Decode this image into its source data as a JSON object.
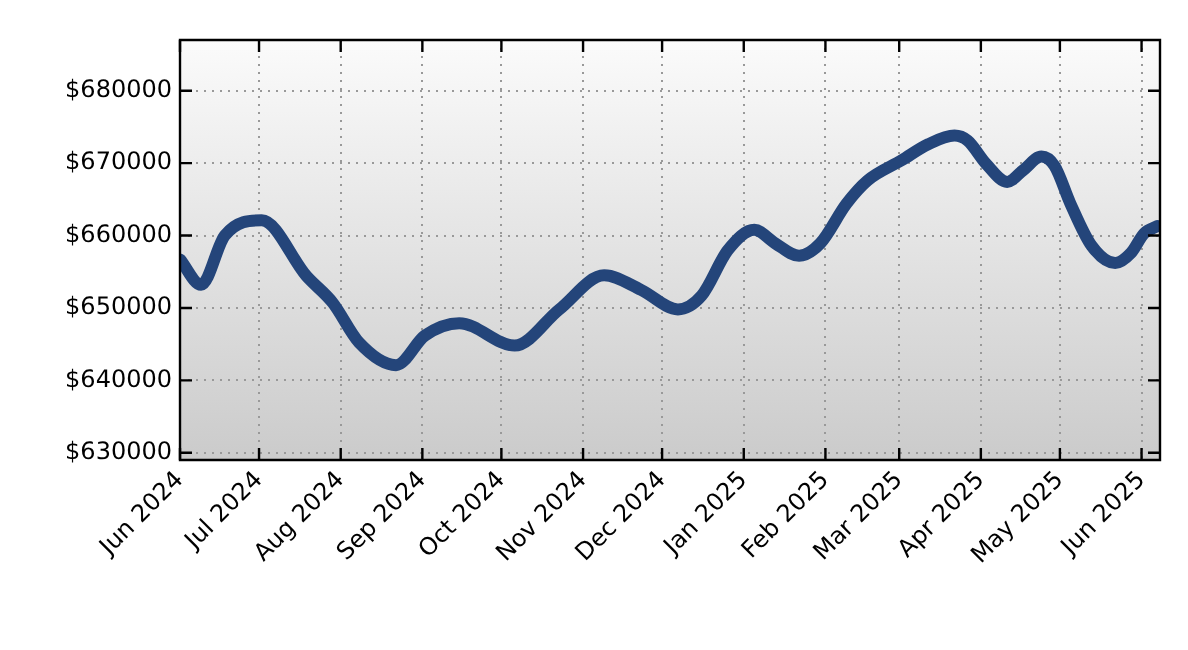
{
  "chart_data": {
    "type": "line",
    "x": [
      "2024-06-01",
      "2024-06-09",
      "2024-06-18",
      "2024-07-02",
      "2024-07-19",
      "2024-07-29",
      "2024-08-08",
      "2024-08-22",
      "2024-09-02",
      "2024-09-15",
      "2024-10-06",
      "2024-10-23",
      "2024-11-09",
      "2024-11-23",
      "2024-12-07",
      "2024-12-16",
      "2024-12-26",
      "2025-01-05",
      "2025-01-13",
      "2025-01-22",
      "2025-01-30",
      "2025-02-09",
      "2025-02-17",
      "2025-03-02",
      "2025-03-12",
      "2025-03-22",
      "2025-03-27",
      "2025-04-03",
      "2025-04-11",
      "2025-04-17",
      "2025-04-24",
      "2025-04-29",
      "2025-05-05",
      "2025-05-13",
      "2025-05-22",
      "2025-05-28",
      "2025-06-02",
      "2025-06-07"
    ],
    "series": [
      {
        "color": "#24457a",
        "values": [
          656700,
          653200,
          660000,
          662100,
          654400,
          650700,
          645200,
          642100,
          646200,
          647900,
          644800,
          649800,
          654500,
          652500,
          649800,
          651700,
          658000,
          660800,
          658900,
          657200,
          658900,
          664400,
          667600,
          670400,
          672600,
          673800,
          673100,
          669900,
          667400,
          669000,
          670900,
          669600,
          664400,
          658600,
          656200,
          657600,
          660300,
          661300
        ]
      }
    ],
    "xlim": [
      "2024-06-01",
      "2025-06-08"
    ],
    "xticks": [
      {
        "value": "2024-06-01",
        "label": "Jun 2024"
      },
      {
        "value": "2024-07-01",
        "label": "Jul 2024"
      },
      {
        "value": "2024-08-01",
        "label": "Aug 2024"
      },
      {
        "value": "2024-09-01",
        "label": "Sep 2024"
      },
      {
        "value": "2024-10-01",
        "label": "Oct 2024"
      },
      {
        "value": "2024-11-01",
        "label": "Nov 2024"
      },
      {
        "value": "2024-12-01",
        "label": "Dec 2024"
      },
      {
        "value": "2025-01-01",
        "label": "Jan 2025"
      },
      {
        "value": "2025-02-01",
        "label": "Feb 2025"
      },
      {
        "value": "2025-03-01",
        "label": "Mar 2025"
      },
      {
        "value": "2025-04-01",
        "label": "Apr 2025"
      },
      {
        "value": "2025-05-01",
        "label": "May 2025"
      },
      {
        "value": "2025-06-01",
        "label": "Jun 2025"
      }
    ],
    "ylim": [
      629000,
      687000
    ],
    "yticks": [
      {
        "value": 630000,
        "label": "$630000"
      },
      {
        "value": 640000,
        "label": "$640000"
      },
      {
        "value": 650000,
        "label": "$650000"
      },
      {
        "value": 660000,
        "label": "$660000"
      },
      {
        "value": 670000,
        "label": "$670000"
      },
      {
        "value": 680000,
        "label": "$680000"
      }
    ],
    "grid": true,
    "legend": false,
    "marker": "none",
    "line_style": "solid"
  }
}
